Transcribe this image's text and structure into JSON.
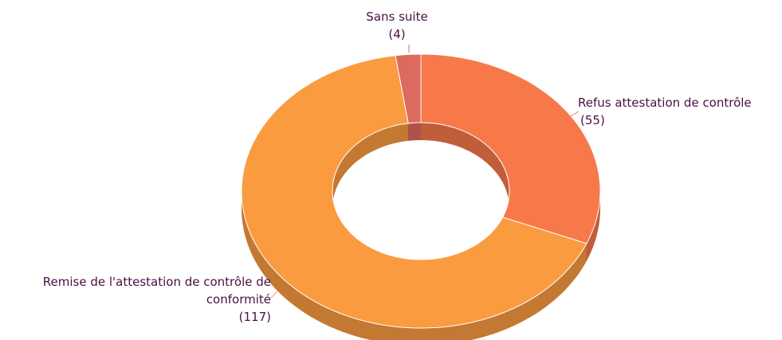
{
  "chart_data": {
    "type": "donut3d",
    "categories": [
      "Refus attestation de contrôle",
      "Remise de l'attestation de contrôle de conformité",
      "Sans suite"
    ],
    "values": [
      55,
      117,
      4
    ],
    "value_labels": [
      "(55)",
      "(117)",
      "(4)"
    ],
    "colors": [
      "#f7794a",
      "#fb9b40",
      "#dd6a5f"
    ]
  }
}
